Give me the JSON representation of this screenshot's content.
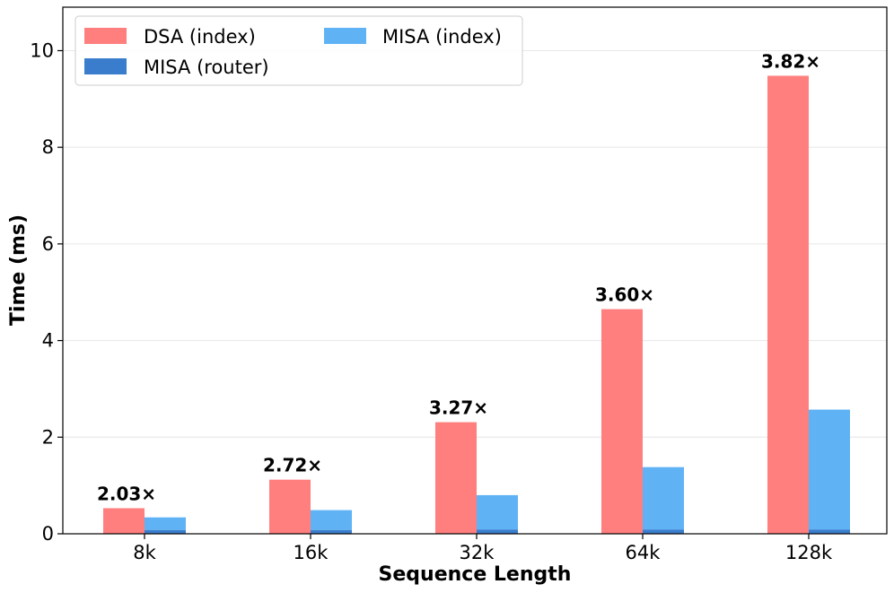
{
  "chart_data": {
    "type": "bar",
    "xlabel": "Sequence Length",
    "ylabel": "Time (ms)",
    "ylim": [
      0,
      10.9
    ],
    "yticks": [
      0,
      2,
      4,
      6,
      8,
      10
    ],
    "grid": "y",
    "legend_position": "top-left",
    "categories": [
      "8k",
      "16k",
      "32k",
      "64k",
      "128k"
    ],
    "series": [
      {
        "name": "DSA (index)",
        "color": "#ff7f7f",
        "values": [
          0.53,
          1.12,
          2.31,
          4.65,
          9.48
        ]
      },
      {
        "name": "MISA (index)",
        "color": "#5fb3f5",
        "values": [
          0.26,
          0.41,
          0.71,
          1.29,
          2.48
        ]
      },
      {
        "name": "MISA (router)",
        "color": "#3a7dcc",
        "values": [
          0.08,
          0.08,
          0.09,
          0.09,
          0.09
        ]
      }
    ],
    "annotations": [
      "2.03×",
      "2.72×",
      "3.27×",
      "3.60×",
      "3.82×"
    ]
  }
}
